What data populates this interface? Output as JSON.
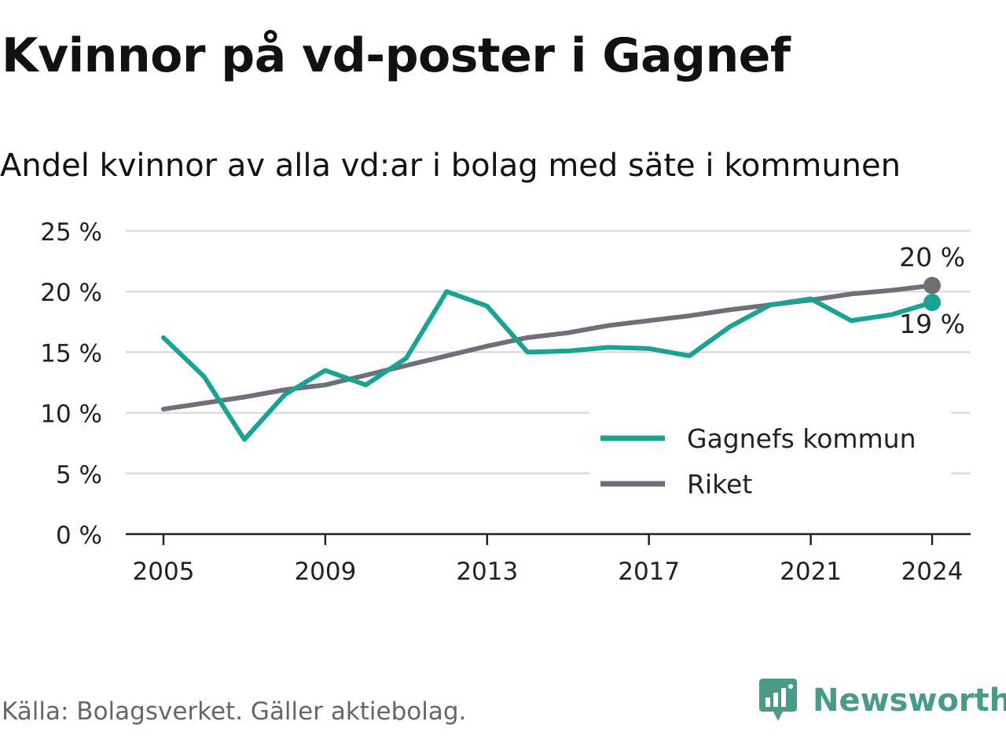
{
  "title": "Kvinnor på vd-poster i Gagnef",
  "subtitle": "Andel kvinnor av alla vd:ar i bolag med säte i kommunen",
  "source": "Källa: Bolagsverket. Gäller aktiebolag.",
  "brand": "Newsworthy",
  "colors": {
    "gagnef": "#1aa394",
    "riket": "#6f6f78",
    "grid": "#dcdcdc",
    "axis": "#222222",
    "brand": "#4a9a8a"
  },
  "chart_data": {
    "type": "line",
    "x": [
      2005,
      2006,
      2007,
      2008,
      2009,
      2010,
      2011,
      2012,
      2013,
      2014,
      2015,
      2016,
      2017,
      2018,
      2019,
      2020,
      2021,
      2022,
      2023,
      2024
    ],
    "series": [
      {
        "name": "Gagnefs kommun",
        "values": [
          16.2,
          13.0,
          7.8,
          11.5,
          13.5,
          12.3,
          14.5,
          20.0,
          18.8,
          15.0,
          15.1,
          15.4,
          15.3,
          14.7,
          17.1,
          18.9,
          19.4,
          17.6,
          18.1,
          19.1
        ],
        "end_label": "19 %"
      },
      {
        "name": "Riket",
        "values": [
          10.3,
          10.8,
          11.3,
          11.9,
          12.3,
          13.1,
          13.9,
          14.7,
          15.5,
          16.2,
          16.6,
          17.2,
          17.6,
          18.0,
          18.5,
          18.9,
          19.3,
          19.8,
          20.1,
          20.5
        ],
        "end_label": "20 %"
      }
    ],
    "y_ticks": [
      "0 %",
      "5 %",
      "10 %",
      "15 %",
      "20 %",
      "25 %"
    ],
    "x_ticks": [
      "2005",
      "2009",
      "2013",
      "2017",
      "2021",
      "2024"
    ],
    "xlabel": "",
    "ylabel": "",
    "ylim": [
      0,
      25
    ],
    "grid": true,
    "legend_position": "lower-right"
  }
}
